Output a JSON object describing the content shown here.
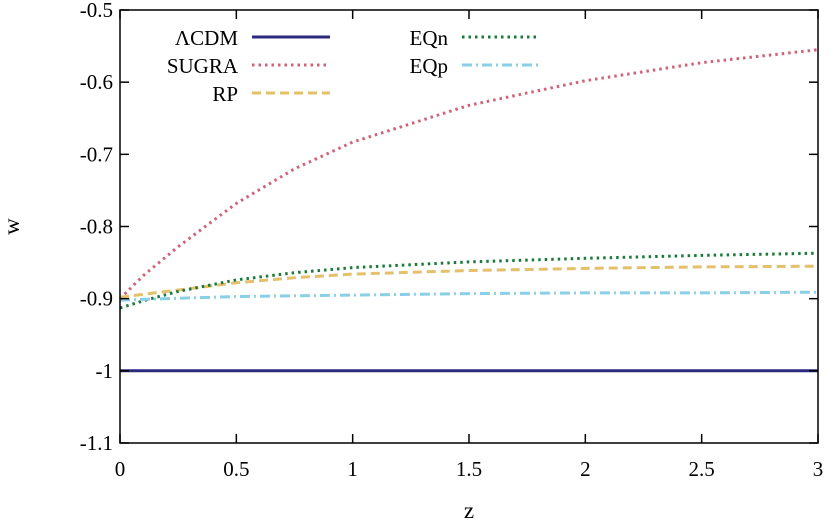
{
  "chart_data": {
    "type": "line",
    "title": "",
    "xlabel": "z",
    "ylabel": "w",
    "xlim": [
      0,
      3
    ],
    "ylim": [
      -1.1,
      -0.5
    ],
    "xticks": [
      "0",
      "0.5",
      "1",
      "1.5",
      "2",
      "2.5",
      "3"
    ],
    "yticks": [
      "-0.5",
      "-0.6",
      "-0.7",
      "-0.8",
      "-0.9",
      "-1",
      "-1.1"
    ],
    "grid": false,
    "legend_position": "top-left",
    "series": [
      {
        "name": "ΛCDM",
        "color": "#2d2a7e",
        "style": "solid",
        "x": [
          0,
          3
        ],
        "y": [
          -1.0,
          -1.0
        ]
      },
      {
        "name": "SUGRA",
        "color": "#d06278",
        "style": "dotted",
        "x": [
          0,
          0.1,
          0.25,
          0.5,
          0.75,
          1.0,
          1.5,
          2.0,
          2.5,
          3.0
        ],
        "y": [
          -0.9,
          -0.868,
          -0.828,
          -0.768,
          -0.72,
          -0.683,
          -0.632,
          -0.598,
          -0.573,
          -0.555
        ]
      },
      {
        "name": "RP",
        "color": "#e5c06b",
        "style": "dashed",
        "x": [
          0,
          0.25,
          0.5,
          0.75,
          1.0,
          1.5,
          2.0,
          2.5,
          3.0
        ],
        "y": [
          -0.898,
          -0.888,
          -0.878,
          -0.871,
          -0.866,
          -0.861,
          -0.858,
          -0.856,
          -0.855
        ]
      },
      {
        "name": "EQn",
        "color": "#1b7a3a",
        "style": "dotted",
        "x": [
          0,
          0.1,
          0.25,
          0.5,
          0.75,
          1.0,
          1.5,
          2.0,
          2.5,
          3.0
        ],
        "y": [
          -0.913,
          -0.903,
          -0.89,
          -0.874,
          -0.864,
          -0.857,
          -0.849,
          -0.844,
          -0.84,
          -0.837
        ]
      },
      {
        "name": "EQp",
        "color": "#89cfe8",
        "style": "dashdot",
        "x": [
          0,
          0.5,
          1.0,
          1.5,
          2.0,
          2.5,
          3.0
        ],
        "y": [
          -0.902,
          -0.897,
          -0.895,
          -0.893,
          -0.892,
          -0.892,
          -0.891
        ]
      }
    ]
  }
}
